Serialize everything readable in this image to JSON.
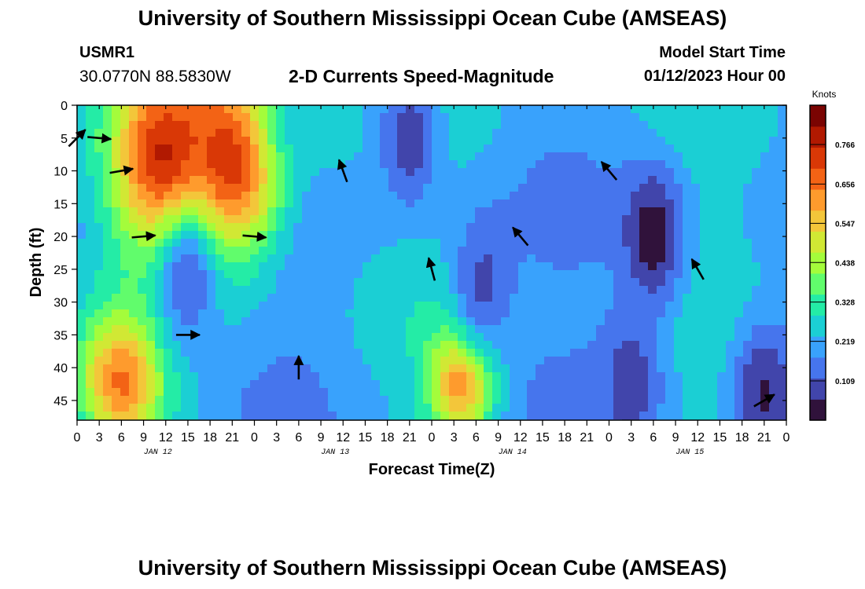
{
  "header": {
    "title": "University of Southern Mississippi Ocean Cube (AMSEAS)",
    "station": "USMR1",
    "coordinates": "30.0770N  88.5830W",
    "subtitle": "2-D Currents Speed-Magnitude",
    "start_label": "Model Start Time",
    "start_value": "01/12/2023 Hour 00"
  },
  "footer": {
    "title_repeat": "University of Southern Mississippi Ocean Cube (AMSEAS)"
  },
  "chart_data": {
    "type": "heatmap",
    "title": "2-D Currents Speed-Magnitude",
    "xlabel": "Forecast Time(Z)",
    "ylabel": "Depth (ft)",
    "x_ticks": [
      "0",
      "3",
      "6",
      "9",
      "12",
      "15",
      "18",
      "21",
      "0",
      "3",
      "6",
      "9",
      "12",
      "15",
      "18",
      "21",
      "0",
      "3",
      "6",
      "9",
      "12",
      "15",
      "18",
      "21",
      "0",
      "3",
      "6",
      "9",
      "12",
      "15",
      "18",
      "21",
      "0"
    ],
    "day_labels": [
      "JAN 12",
      "JAN 13",
      "JAN 14",
      "JAN 15"
    ],
    "y_ticks": [
      0,
      5,
      10,
      15,
      20,
      25,
      30,
      35,
      40,
      45
    ],
    "y_range": [
      0,
      48
    ],
    "x_range_hours": [
      0,
      96
    ],
    "colorbar": {
      "unit": "Knots",
      "ticks": [
        "0.766",
        "0.656",
        "0.547",
        "0.438",
        "0.328",
        "0.219",
        "0.109"
      ],
      "range": [
        0,
        0.875
      ],
      "colors": [
        "#30123b",
        "#4145ab",
        "#4675ed",
        "#39a2fc",
        "#1bcfd4",
        "#24eca6",
        "#61fc6c",
        "#a4fc3b",
        "#d1e834",
        "#f3c63a",
        "#fe9b2d",
        "#f36315",
        "#d93806",
        "#b11901",
        "#7a0402"
      ]
    },
    "hot_spots": [
      {
        "hour": 12,
        "depth": 8,
        "speed": 0.78,
        "sigma_h": 5,
        "sigma_d": 10
      },
      {
        "hour": 21,
        "depth": 8,
        "speed": 0.78,
        "sigma_h": 5,
        "sigma_d": 10
      },
      {
        "hour": 6,
        "depth": 42,
        "speed": 0.66,
        "sigma_h": 4,
        "sigma_d": 7
      },
      {
        "hour": 52,
        "depth": 42,
        "speed": 0.65,
        "sigma_h": 3,
        "sigma_d": 6
      },
      {
        "hour": 34,
        "depth": 4,
        "speed": 0.25,
        "sigma_h": 6,
        "sigma_d": 6
      }
    ],
    "low_spots": [
      {
        "hour": 15,
        "depth": 27,
        "speed": 0.12
      },
      {
        "hour": 45,
        "depth": 5,
        "speed": 0.08
      },
      {
        "hour": 55,
        "depth": 27,
        "speed": 0.1
      },
      {
        "hour": 78,
        "depth": 20,
        "speed": 0.02
      },
      {
        "hour": 93,
        "depth": 44,
        "speed": 0.05
      },
      {
        "hour": 75,
        "depth": 42,
        "speed": 0.08
      }
    ],
    "vectors": [
      {
        "hour": 0,
        "depth": 5,
        "dir_deg": 45
      },
      {
        "hour": 3,
        "depth": 5,
        "dir_deg": 95
      },
      {
        "hour": 6,
        "depth": 10,
        "dir_deg": 80
      },
      {
        "hour": 9,
        "depth": 20,
        "dir_deg": 85
      },
      {
        "hour": 15,
        "depth": 35,
        "dir_deg": 90
      },
      {
        "hour": 24,
        "depth": 20,
        "dir_deg": 95
      },
      {
        "hour": 30,
        "depth": 40,
        "dir_deg": 0
      },
      {
        "hour": 36,
        "depth": 10,
        "dir_deg": -20
      },
      {
        "hour": 48,
        "depth": 25,
        "dir_deg": -15
      },
      {
        "hour": 60,
        "depth": 20,
        "dir_deg": -40
      },
      {
        "hour": 72,
        "depth": 10,
        "dir_deg": -40
      },
      {
        "hour": 84,
        "depth": 25,
        "dir_deg": -30
      },
      {
        "hour": 93,
        "depth": 45,
        "dir_deg": 60
      }
    ]
  }
}
